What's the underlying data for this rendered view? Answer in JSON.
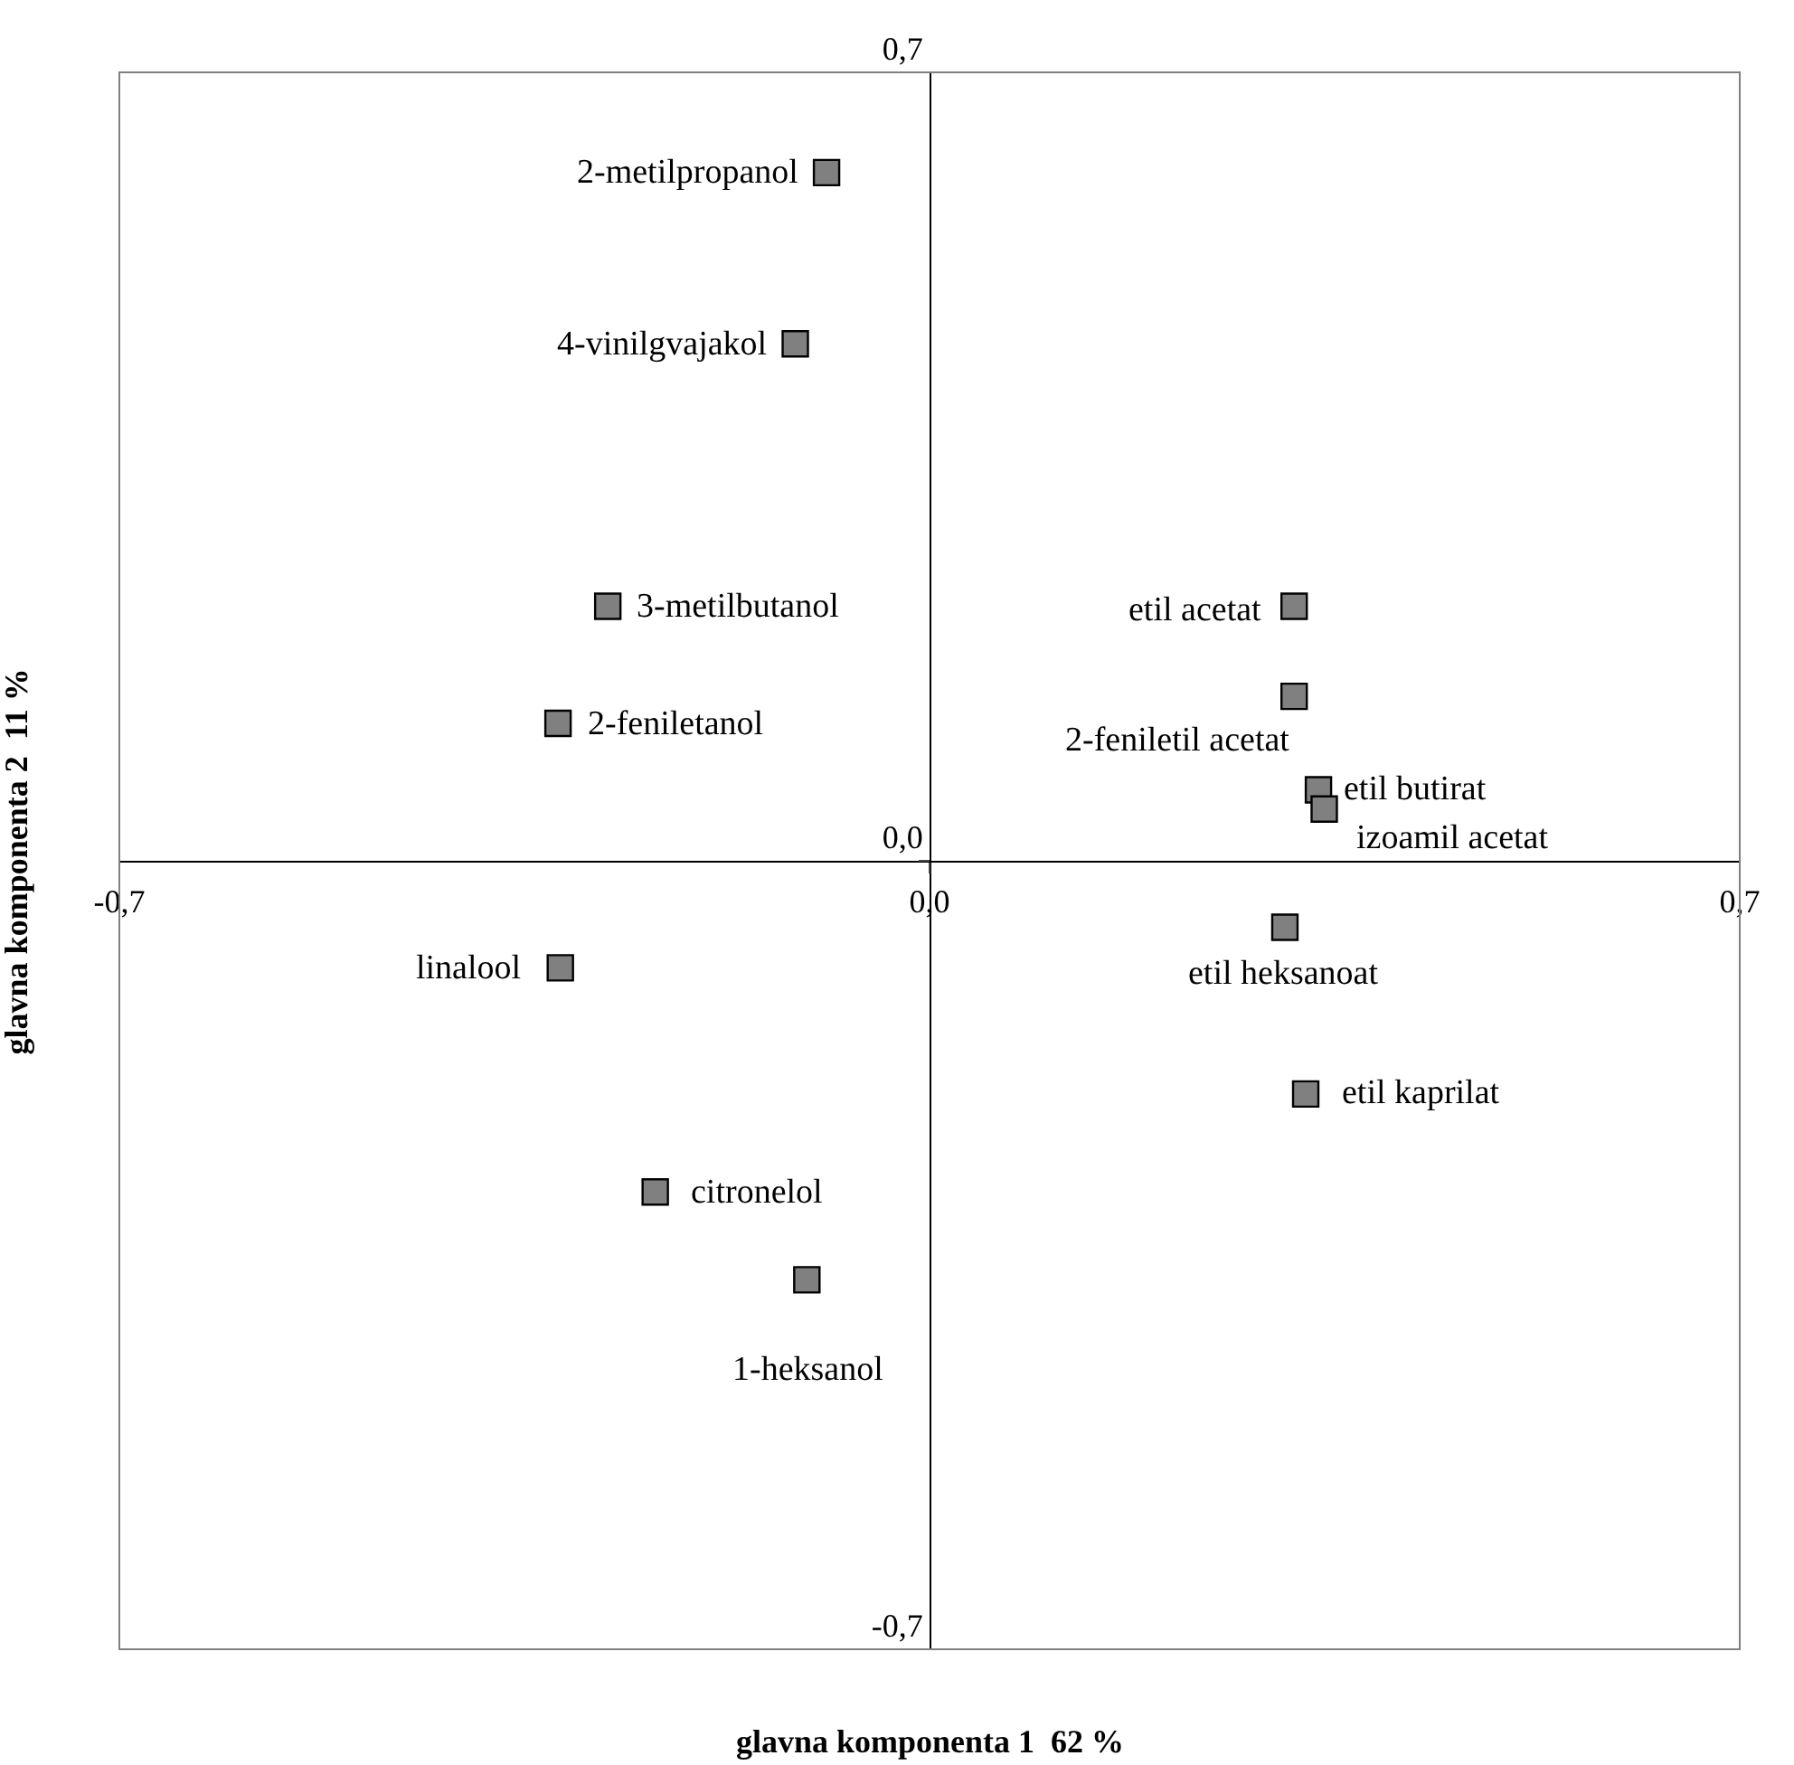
{
  "chart_data": {
    "type": "scatter",
    "xlabel": "glavna komponenta 1  62 %",
    "ylabel": "glavna komponenta 2  11 %",
    "x": [
      -0.089,
      -0.116,
      -0.278,
      -0.321,
      -0.319,
      -0.237,
      -0.106,
      0.315,
      0.315,
      0.336,
      0.341,
      0.307,
      0.325
    ],
    "values": [
      0.611,
      0.459,
      0.226,
      0.122,
      -0.095,
      -0.294,
      -0.372,
      0.226,
      0.146,
      0.063,
      0.046,
      -0.059,
      -0.207
    ],
    "color": "#808080",
    "marker": "square",
    "legend": false,
    "xlim": [
      -0.7,
      0.7
    ],
    "ylim": [
      -0.7,
      0.7
    ],
    "xticks": [
      {
        "value": -0.7,
        "label": "-0,7"
      },
      {
        "value": 0.0,
        "label": "0,0"
      },
      {
        "value": 0.7,
        "label": "0,7"
      }
    ],
    "yticks": [
      {
        "value": -0.7,
        "label": "-0,7"
      },
      {
        "value": 0.0,
        "label": "0,0"
      },
      {
        "value": 0.7,
        "label": "0,7"
      }
    ],
    "annotations": [
      {
        "text": "2-metilpropanol",
        "x": -0.089,
        "y": 0.611
      },
      {
        "text": "4-vinilgvajakol",
        "x": -0.116,
        "y": 0.459
      },
      {
        "text": "3-metilbutanol",
        "x": -0.278,
        "y": 0.226
      },
      {
        "text": "2-feniletanol",
        "x": -0.321,
        "y": 0.122
      },
      {
        "text": "linalool",
        "x": -0.319,
        "y": -0.095
      },
      {
        "text": "citronelol",
        "x": -0.237,
        "y": -0.294
      },
      {
        "text": "1-heksanol",
        "x": -0.106,
        "y": -0.372
      },
      {
        "text": "etil acetat",
        "x": 0.315,
        "y": 0.226
      },
      {
        "text": "2-feniletil acetat",
        "x": 0.315,
        "y": 0.146
      },
      {
        "text": "etil butirat",
        "x": 0.336,
        "y": 0.063
      },
      {
        "text": "izoamil acetat",
        "x": 0.341,
        "y": 0.046
      },
      {
        "text": "etil heksanoat",
        "x": 0.307,
        "y": -0.059
      },
      {
        "text": "etil kaprilat",
        "x": 0.325,
        "y": -0.207
      }
    ]
  }
}
